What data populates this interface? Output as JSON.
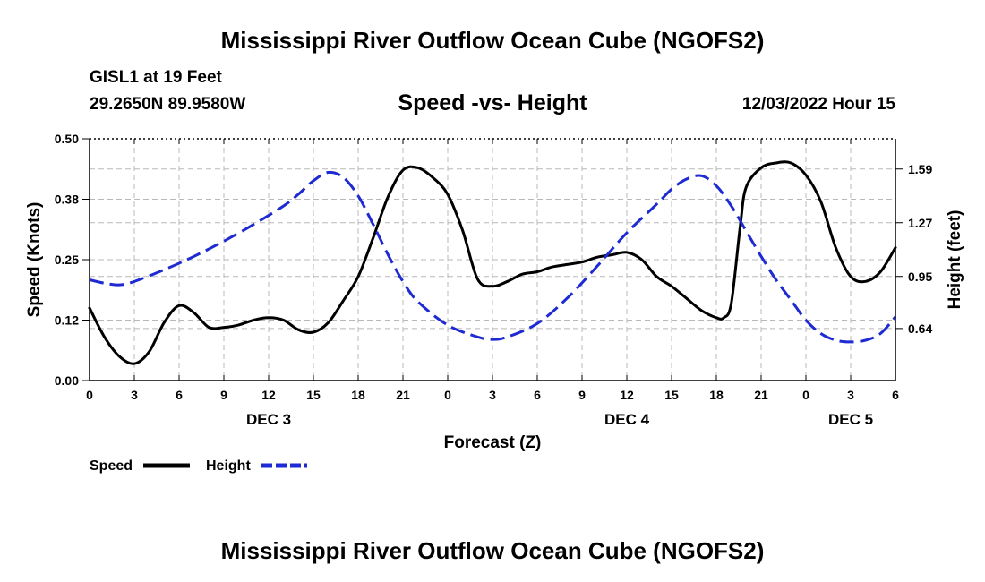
{
  "header": {
    "title": "Mississippi River Outflow Ocean Cube (NGOFS2)",
    "station": "GISL1 at 19 Feet",
    "coords": "29.2650N  89.9580W",
    "subtitle": "Speed -vs- Height",
    "datetime": "12/03/2022 Hour 15"
  },
  "footer": {
    "title": "Mississippi River Outflow Ocean Cube (NGOFS2)"
  },
  "chart_data": {
    "type": "line",
    "xlabel": "Forecast (Z)",
    "ylabel": "Speed (Knots)",
    "y2label": "Height (feet)",
    "xlim": [
      0,
      54
    ],
    "ylim": [
      0,
      0.5
    ],
    "y2lim": [
      0.33,
      1.77
    ],
    "grid": true,
    "x_ticks": [
      0,
      3,
      6,
      9,
      12,
      15,
      18,
      21,
      24,
      27,
      30,
      33,
      36,
      39,
      42,
      45,
      48,
      51,
      54
    ],
    "x_tick_labels": [
      "0",
      "3",
      "6",
      "9",
      "12",
      "15",
      "18",
      "21",
      "0",
      "3",
      "6",
      "9",
      "12",
      "15",
      "18",
      "21",
      "0",
      "3",
      "6"
    ],
    "y_ticks": [
      0,
      0.125,
      0.25,
      0.375,
      0.5
    ],
    "y_tick_labels": [
      "0.00",
      "0.12",
      "0.25",
      "0.38",
      "0.50"
    ],
    "y2_ticks": [
      0.64,
      0.95,
      1.27,
      1.59
    ],
    "y2_tick_labels": [
      "0.64",
      "0.95",
      "1.27",
      "1.59"
    ],
    "day_labels": [
      {
        "x": 12,
        "label": "DEC 3"
      },
      {
        "x": 36,
        "label": "DEC 4"
      },
      {
        "x": 51,
        "label": "DEC 5"
      }
    ],
    "series": [
      {
        "name": "Speed",
        "axis": "left",
        "color": "#000000",
        "style": "solid",
        "points": [
          [
            0,
            0.15
          ],
          [
            1,
            0.09
          ],
          [
            2,
            0.05
          ],
          [
            3,
            0.035
          ],
          [
            4,
            0.06
          ],
          [
            5,
            0.12
          ],
          [
            6,
            0.155
          ],
          [
            7,
            0.14
          ],
          [
            8,
            0.11
          ],
          [
            9,
            0.11
          ],
          [
            10,
            0.115
          ],
          [
            11,
            0.125
          ],
          [
            12,
            0.13
          ],
          [
            13,
            0.125
          ],
          [
            14,
            0.105
          ],
          [
            15,
            0.1
          ],
          [
            16,
            0.12
          ],
          [
            17,
            0.165
          ],
          [
            18,
            0.215
          ],
          [
            19,
            0.295
          ],
          [
            20,
            0.38
          ],
          [
            21,
            0.435
          ],
          [
            22,
            0.44
          ],
          [
            23,
            0.42
          ],
          [
            24,
            0.385
          ],
          [
            25,
            0.31
          ],
          [
            26,
            0.21
          ],
          [
            27,
            0.195
          ],
          [
            28,
            0.205
          ],
          [
            29,
            0.22
          ],
          [
            30,
            0.225
          ],
          [
            31,
            0.235
          ],
          [
            32,
            0.24
          ],
          [
            33,
            0.245
          ],
          [
            34,
            0.255
          ],
          [
            35,
            0.26
          ],
          [
            36,
            0.265
          ],
          [
            37,
            0.25
          ],
          [
            38,
            0.215
          ],
          [
            39,
            0.195
          ],
          [
            40,
            0.17
          ],
          [
            41,
            0.145
          ],
          [
            42,
            0.13
          ],
          [
            42.5,
            0.13
          ],
          [
            43,
            0.16
          ],
          [
            43.6,
            0.32
          ],
          [
            44,
            0.4
          ],
          [
            45,
            0.44
          ],
          [
            46,
            0.45
          ],
          [
            47,
            0.45
          ],
          [
            48,
            0.425
          ],
          [
            49,
            0.37
          ],
          [
            50,
            0.275
          ],
          [
            51,
            0.215
          ],
          [
            52,
            0.205
          ],
          [
            53,
            0.225
          ],
          [
            54,
            0.275
          ]
        ]
      },
      {
        "name": "Height",
        "axis": "right",
        "color": "#1e2ad2",
        "style": "dashed",
        "points": [
          [
            0,
            0.93
          ],
          [
            1,
            0.91
          ],
          [
            2,
            0.9
          ],
          [
            3,
            0.92
          ],
          [
            5,
            0.99
          ],
          [
            7,
            1.07
          ],
          [
            9,
            1.16
          ],
          [
            11,
            1.26
          ],
          [
            13,
            1.37
          ],
          [
            14,
            1.44
          ],
          [
            15,
            1.52
          ],
          [
            16,
            1.57
          ],
          [
            17,
            1.54
          ],
          [
            18,
            1.43
          ],
          [
            19,
            1.26
          ],
          [
            20,
            1.08
          ],
          [
            21,
            0.92
          ],
          [
            22,
            0.8
          ],
          [
            24,
            0.66
          ],
          [
            26,
            0.59
          ],
          [
            27,
            0.575
          ],
          [
            28,
            0.59
          ],
          [
            30,
            0.67
          ],
          [
            32,
            0.82
          ],
          [
            34,
            1.01
          ],
          [
            36,
            1.21
          ],
          [
            38,
            1.38
          ],
          [
            39,
            1.47
          ],
          [
            40,
            1.53
          ],
          [
            41,
            1.55
          ],
          [
            42,
            1.49
          ],
          [
            43,
            1.37
          ],
          [
            44,
            1.22
          ],
          [
            45,
            1.07
          ],
          [
            46,
            0.93
          ],
          [
            47,
            0.81
          ],
          [
            48,
            0.69
          ],
          [
            49,
            0.61
          ],
          [
            50,
            0.57
          ],
          [
            51,
            0.56
          ],
          [
            52,
            0.57
          ],
          [
            53,
            0.61
          ],
          [
            54,
            0.71
          ]
        ]
      }
    ],
    "legend": [
      {
        "name": "Speed",
        "color": "#000000",
        "style": "solid"
      },
      {
        "name": "Height",
        "color": "#1e2ad2",
        "style": "dashed"
      }
    ]
  }
}
